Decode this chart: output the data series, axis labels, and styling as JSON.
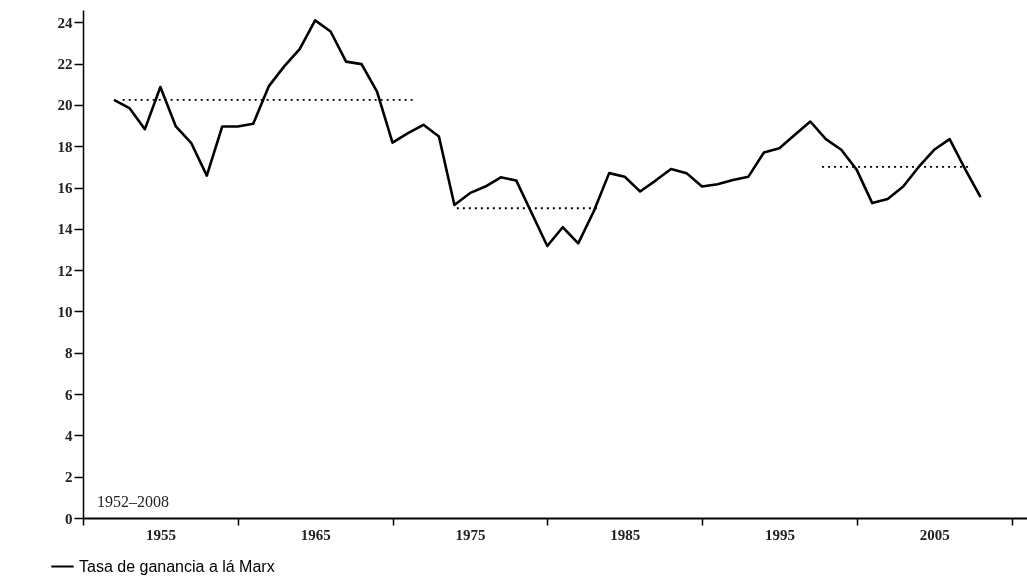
{
  "chart_data": {
    "type": "line",
    "x": [
      1952,
      1953,
      1954,
      1955,
      1956,
      1957,
      1958,
      1959,
      1960,
      1961,
      1962,
      1963,
      1964,
      1965,
      1966,
      1967,
      1968,
      1969,
      1970,
      1971,
      1972,
      1973,
      1974,
      1975,
      1976,
      1977,
      1978,
      1979,
      1980,
      1981,
      1982,
      1983,
      1984,
      1985,
      1986,
      1987,
      1988,
      1989,
      1990,
      1991,
      1992,
      1993,
      1994,
      1995,
      1996,
      1997,
      1998,
      1999,
      2000,
      2001,
      2002,
      2003,
      2004,
      2005,
      2006,
      2007,
      2008
    ],
    "series": [
      {
        "name": "Tasa de ganancia a lá Marx",
        "color": "#000000",
        "line_style": "solid",
        "values": [
          20.25,
          19.85,
          18.83,
          20.87,
          18.96,
          18.15,
          16.58,
          18.96,
          18.96,
          19.09,
          20.9,
          21.87,
          22.71,
          24.1,
          23.56,
          22.1,
          21.98,
          20.65,
          18.18,
          18.64,
          19.04,
          18.47,
          15.16,
          15.73,
          16.05,
          16.5,
          16.34,
          14.76,
          13.17,
          14.08,
          13.3,
          14.84,
          16.7,
          16.53,
          15.81,
          16.34,
          16.9,
          16.7,
          16.05,
          16.16,
          16.37,
          16.53,
          17.7,
          17.91,
          18.56,
          19.2,
          18.35,
          17.83,
          16.86,
          15.25,
          15.45,
          16.05,
          17.0,
          17.83,
          18.35,
          16.9,
          15.54
        ]
      },
      {
        "type": "line",
        "color": "#000000",
        "line_style": "dotted",
        "x": [
          1952.4,
          1971.3
        ],
        "values": [
          20.25,
          20.25
        ]
      },
      {
        "type": "line",
        "color": "#000000",
        "line_style": "dotted",
        "x": [
          1973.9,
          1983.4
        ],
        "values": [
          15.0,
          15.0
        ]
      },
      {
        "type": "line",
        "color": "#000000",
        "line_style": "dotted",
        "x": [
          1997.6,
          2007.2
        ],
        "values": [
          17.0,
          17.0
        ]
      }
    ],
    "xlim": [
      1950,
      2011
    ],
    "xticks": [
      {
        "value": 1950,
        "label": null
      },
      {
        "value": 1955,
        "label": "1955"
      },
      {
        "value": 1960,
        "label": null
      },
      {
        "value": 1965,
        "label": "1965"
      },
      {
        "value": 1970,
        "label": null
      },
      {
        "value": 1975,
        "label": "1975"
      },
      {
        "value": 1980,
        "label": null
      },
      {
        "value": 1985,
        "label": "1985"
      },
      {
        "value": 1990,
        "label": null
      },
      {
        "value": 1995,
        "label": "1995"
      },
      {
        "value": 2000,
        "label": null
      },
      {
        "value": 2005,
        "label": "2005"
      },
      {
        "value": 2010,
        "label": null
      }
    ],
    "ylim": [
      0,
      24.6
    ],
    "yticks": [
      0,
      2,
      4,
      6,
      8,
      10,
      12,
      14,
      16,
      18,
      20,
      22,
      24
    ],
    "annotations": [
      "1952–2008"
    ],
    "legend": "bottom left",
    "marker": "none",
    "grid": false
  }
}
